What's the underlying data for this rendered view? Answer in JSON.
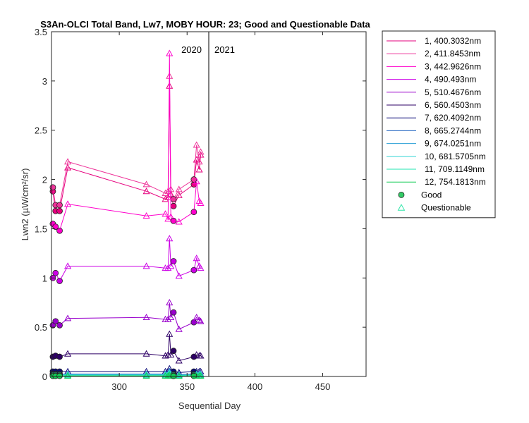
{
  "chart_data": {
    "type": "line",
    "title": "S3An-OLCI Total Band, Lw7, MOBY HOUR: 23;  Good and Questionable Data",
    "xlabel": "Sequential Day",
    "ylabel": "Lwn2 (µW/cm²/sr)",
    "xlim": [
      250,
      482
    ],
    "ylim": [
      0,
      3.5
    ],
    "x_ticks": [
      300,
      350,
      400,
      450
    ],
    "y_ticks": [
      0,
      0.5,
      1,
      1.5,
      2,
      2.5,
      3,
      3.5
    ],
    "year_divider_x": 366,
    "year_labels": [
      "2020",
      "2021"
    ],
    "grid": false,
    "legend_position": "outside-right",
    "series": [
      {
        "name": "1, 400.3032nm",
        "color": "#e6007e",
        "points": [
          [
            251,
            1.88
          ],
          [
            253,
            1.68
          ],
          [
            256,
            1.68
          ],
          [
            262,
            2.12
          ],
          [
            320,
            1.88
          ],
          [
            334,
            1.8
          ],
          [
            336,
            1.82
          ],
          [
            337,
            2.95
          ],
          [
            338,
            1.85
          ],
          [
            340,
            1.73
          ],
          [
            344,
            1.84
          ],
          [
            355,
            1.95
          ],
          [
            357,
            2.2
          ],
          [
            359,
            2.1
          ],
          [
            360,
            2.25
          ]
        ]
      },
      {
        "name": "2, 411.8453nm",
        "color": "#ee3399",
        "points": [
          [
            251,
            1.92
          ],
          [
            253,
            1.74
          ],
          [
            256,
            1.74
          ],
          [
            262,
            2.18
          ],
          [
            320,
            1.95
          ],
          [
            334,
            1.86
          ],
          [
            336,
            1.88
          ],
          [
            337,
            3.05
          ],
          [
            338,
            1.9
          ],
          [
            340,
            1.8
          ],
          [
            344,
            1.9
          ],
          [
            355,
            2.0
          ],
          [
            357,
            2.35
          ],
          [
            359,
            2.18
          ],
          [
            360,
            2.28
          ]
        ]
      },
      {
        "name": "3, 442.9626nm",
        "color": "#ff00cc",
        "points": [
          [
            251,
            1.55
          ],
          [
            253,
            1.52
          ],
          [
            256,
            1.48
          ],
          [
            262,
            1.75
          ],
          [
            320,
            1.63
          ],
          [
            334,
            1.65
          ],
          [
            336,
            1.6
          ],
          [
            337,
            3.28
          ],
          [
            338,
            1.62
          ],
          [
            340,
            1.58
          ],
          [
            344,
            1.57
          ],
          [
            355,
            1.67
          ],
          [
            357,
            1.98
          ],
          [
            359,
            1.78
          ],
          [
            360,
            1.76
          ]
        ]
      },
      {
        "name": "4,  490.493nm",
        "color": "#cc00e6",
        "points": [
          [
            251,
            1.0
          ],
          [
            253,
            1.05
          ],
          [
            256,
            0.97
          ],
          [
            262,
            1.12
          ],
          [
            320,
            1.12
          ],
          [
            334,
            1.1
          ],
          [
            336,
            1.1
          ],
          [
            337,
            1.4
          ],
          [
            338,
            1.12
          ],
          [
            340,
            1.17
          ],
          [
            344,
            1.02
          ],
          [
            355,
            1.08
          ],
          [
            357,
            1.2
          ],
          [
            359,
            1.12
          ],
          [
            360,
            1.1
          ]
        ]
      },
      {
        "name": "5, 510.4676nm",
        "color": "#9900cc",
        "points": [
          [
            251,
            0.52
          ],
          [
            253,
            0.56
          ],
          [
            256,
            0.52
          ],
          [
            262,
            0.59
          ],
          [
            320,
            0.6
          ],
          [
            334,
            0.58
          ],
          [
            336,
            0.58
          ],
          [
            337,
            0.75
          ],
          [
            338,
            0.6
          ],
          [
            340,
            0.65
          ],
          [
            344,
            0.48
          ],
          [
            355,
            0.55
          ],
          [
            357,
            0.6
          ],
          [
            359,
            0.57
          ],
          [
            360,
            0.56
          ]
        ]
      },
      {
        "name": "6, 560.4503nm",
        "color": "#2e0066",
        "points": [
          [
            251,
            0.2
          ],
          [
            253,
            0.21
          ],
          [
            256,
            0.2
          ],
          [
            262,
            0.23
          ],
          [
            320,
            0.23
          ],
          [
            334,
            0.21
          ],
          [
            336,
            0.22
          ],
          [
            337,
            0.43
          ],
          [
            338,
            0.22
          ],
          [
            340,
            0.26
          ],
          [
            344,
            0.16
          ],
          [
            355,
            0.2
          ],
          [
            357,
            0.22
          ],
          [
            359,
            0.21
          ],
          [
            360,
            0.21
          ]
        ]
      },
      {
        "name": "7, 620.4092nm",
        "color": "#0a0a78",
        "points": [
          [
            251,
            0.05
          ],
          [
            253,
            0.05
          ],
          [
            256,
            0.05
          ],
          [
            262,
            0.05
          ],
          [
            320,
            0.05
          ],
          [
            334,
            0.05
          ],
          [
            336,
            0.05
          ],
          [
            337,
            0.08
          ],
          [
            338,
            0.05
          ],
          [
            340,
            0.05
          ],
          [
            344,
            0.04
          ],
          [
            355,
            0.05
          ],
          [
            357,
            0.05
          ],
          [
            359,
            0.05
          ],
          [
            360,
            0.05
          ]
        ]
      },
      {
        "name": "8, 665.2744nm",
        "color": "#1a5fbf",
        "points": [
          [
            251,
            0.025
          ],
          [
            253,
            0.025
          ],
          [
            256,
            0.025
          ],
          [
            262,
            0.025
          ],
          [
            320,
            0.025
          ],
          [
            334,
            0.025
          ],
          [
            336,
            0.025
          ],
          [
            337,
            0.05
          ],
          [
            338,
            0.025
          ],
          [
            340,
            0.025
          ],
          [
            344,
            0.02
          ],
          [
            355,
            0.025
          ],
          [
            357,
            0.025
          ],
          [
            359,
            0.025
          ],
          [
            360,
            0.025
          ]
        ]
      },
      {
        "name": "9, 674.0251nm",
        "color": "#2a9fd6",
        "points": [
          [
            251,
            0.02
          ],
          [
            253,
            0.02
          ],
          [
            256,
            0.02
          ],
          [
            262,
            0.02
          ],
          [
            320,
            0.02
          ],
          [
            334,
            0.02
          ],
          [
            336,
            0.02
          ],
          [
            337,
            0.04
          ],
          [
            338,
            0.02
          ],
          [
            340,
            0.02
          ],
          [
            344,
            0.015
          ],
          [
            355,
            0.02
          ],
          [
            357,
            0.02
          ],
          [
            359,
            0.02
          ],
          [
            360,
            0.02
          ]
        ]
      },
      {
        "name": "10, 681.5705nm",
        "color": "#33d6d6",
        "points": [
          [
            251,
            0.018
          ],
          [
            253,
            0.018
          ],
          [
            256,
            0.018
          ],
          [
            262,
            0.018
          ],
          [
            320,
            0.018
          ],
          [
            334,
            0.018
          ],
          [
            336,
            0.018
          ],
          [
            337,
            0.035
          ],
          [
            338,
            0.018
          ],
          [
            340,
            0.018
          ],
          [
            344,
            0.012
          ],
          [
            355,
            0.018
          ],
          [
            357,
            0.018
          ],
          [
            359,
            0.018
          ],
          [
            360,
            0.018
          ]
        ]
      },
      {
        "name": "11, 709.1149nm",
        "color": "#22e6b0",
        "points": [
          [
            251,
            0.01
          ],
          [
            253,
            0.01
          ],
          [
            256,
            0.01
          ],
          [
            262,
            0.01
          ],
          [
            320,
            0.01
          ],
          [
            334,
            0.01
          ],
          [
            336,
            0.01
          ],
          [
            337,
            0.02
          ],
          [
            338,
            0.01
          ],
          [
            340,
            0.01
          ],
          [
            344,
            0.008
          ],
          [
            355,
            0.01
          ],
          [
            357,
            0.01
          ],
          [
            359,
            0.01
          ],
          [
            360,
            0.01
          ]
        ]
      },
      {
        "name": "12, 754.1813nm",
        "color": "#11cc55",
        "points": [
          [
            251,
            0.005
          ],
          [
            253,
            0.005
          ],
          [
            256,
            0.005
          ],
          [
            262,
            0.005
          ],
          [
            320,
            0.005
          ],
          [
            334,
            0.005
          ],
          [
            336,
            0.005
          ],
          [
            337,
            0.01
          ],
          [
            338,
            0.005
          ],
          [
            340,
            0.005
          ],
          [
            344,
            0.004
          ],
          [
            355,
            0.005
          ],
          [
            357,
            0.005
          ],
          [
            359,
            0.005
          ],
          [
            360,
            0.005
          ]
        ]
      }
    ],
    "good_days": [
      251,
      253,
      256,
      340,
      355
    ],
    "marker_legend": [
      {
        "name": "Good",
        "symbol": "circle",
        "color": "#33cc66"
      },
      {
        "name": "Questionable",
        "symbol": "triangle",
        "color": "#33e6aa"
      }
    ]
  }
}
